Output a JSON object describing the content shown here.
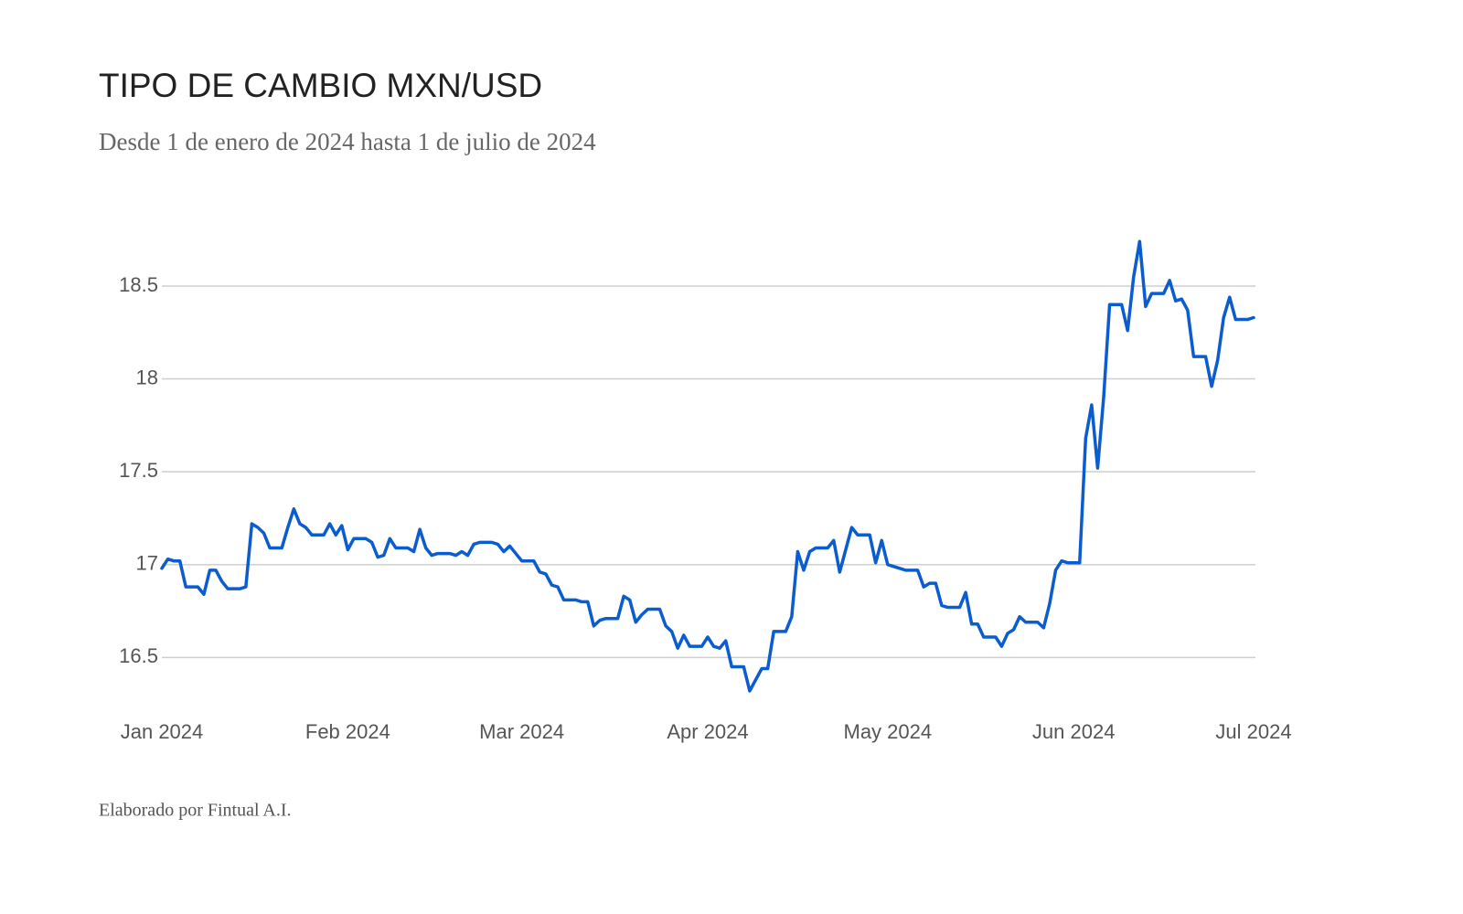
{
  "chart_data": {
    "type": "line",
    "title": "TIPO DE CAMBIO MXN/USD",
    "subtitle": "Desde 1 de enero de 2024 hasta 1 de julio de 2024",
    "footer": "Elaborado por Fintual A.I.",
    "categories": [
      "Jan 2024",
      null,
      null,
      null,
      null,
      null,
      null,
      null,
      null,
      null,
      null,
      null,
      null,
      null,
      null,
      null,
      null,
      null,
      null,
      null,
      null,
      null,
      null,
      null,
      null,
      null,
      null,
      null,
      null,
      null,
      null,
      "Feb 2024",
      null,
      null,
      null,
      null,
      null,
      null,
      null,
      null,
      null,
      null,
      null,
      null,
      null,
      null,
      null,
      null,
      null,
      null,
      null,
      null,
      null,
      null,
      null,
      null,
      null,
      null,
      null,
      null,
      "Mar 2024",
      null,
      null,
      null,
      null,
      null,
      null,
      null,
      null,
      null,
      null,
      null,
      null,
      null,
      null,
      null,
      null,
      null,
      null,
      null,
      null,
      null,
      null,
      null,
      null,
      null,
      null,
      null,
      null,
      null,
      null,
      "Apr 2024",
      null,
      null,
      null,
      null,
      null,
      null,
      null,
      null,
      null,
      null,
      null,
      null,
      null,
      null,
      null,
      null,
      null,
      null,
      null,
      null,
      null,
      null,
      null,
      null,
      null,
      null,
      null,
      null,
      null,
      "May 2024",
      null,
      null,
      null,
      null,
      null,
      null,
      null,
      null,
      null,
      null,
      null,
      null,
      null,
      null,
      null,
      null,
      null,
      null,
      null,
      null,
      null,
      null,
      null,
      null,
      null,
      null,
      null,
      null,
      null,
      null,
      "Jun 2024",
      null,
      null,
      null,
      null,
      null,
      null,
      null,
      null,
      null,
      null,
      null,
      null,
      null,
      null,
      null,
      null,
      null,
      null,
      null,
      null,
      null,
      null,
      null,
      null,
      null,
      null,
      null,
      null,
      null,
      "Jul 2024"
    ],
    "values": [
      16.98,
      17.03,
      17.02,
      17.02,
      16.88,
      16.88,
      16.88,
      16.84,
      16.97,
      16.97,
      16.91,
      16.87,
      16.87,
      16.87,
      16.88,
      17.22,
      17.2,
      17.17,
      17.09,
      17.09,
      17.09,
      17.2,
      17.3,
      17.22,
      17.2,
      17.16,
      17.16,
      17.16,
      17.22,
      17.16,
      17.21,
      17.08,
      17.14,
      17.14,
      17.14,
      17.12,
      17.04,
      17.05,
      17.14,
      17.09,
      17.09,
      17.09,
      17.07,
      17.19,
      17.09,
      17.05,
      17.06,
      17.06,
      17.06,
      17.05,
      17.07,
      17.05,
      17.11,
      17.12,
      17.12,
      17.12,
      17.11,
      17.07,
      17.1,
      17.06,
      17.02,
      17.02,
      17.02,
      16.96,
      16.95,
      16.89,
      16.88,
      16.81,
      16.81,
      16.81,
      16.8,
      16.8,
      16.67,
      16.7,
      16.71,
      16.71,
      16.71,
      16.83,
      16.81,
      16.69,
      16.73,
      16.76,
      16.76,
      16.76,
      16.67,
      16.64,
      16.55,
      16.62,
      16.56,
      16.56,
      16.56,
      16.61,
      16.56,
      16.55,
      16.59,
      16.45,
      16.45,
      16.45,
      16.32,
      16.38,
      16.44,
      16.44,
      16.64,
      16.64,
      16.64,
      16.72,
      17.07,
      16.97,
      17.07,
      17.09,
      17.09,
      17.09,
      17.13,
      16.96,
      17.08,
      17.2,
      17.16,
      17.16,
      17.16,
      17.01,
      17.13,
      17.0,
      16.99,
      16.98,
      16.97,
      16.97,
      16.97,
      16.88,
      16.9,
      16.9,
      16.78,
      16.77,
      16.77,
      16.77,
      16.85,
      16.68,
      16.68,
      16.61,
      16.61,
      16.61,
      16.56,
      16.63,
      16.65,
      16.72,
      16.69,
      16.69,
      16.69,
      16.66,
      16.79,
      16.97,
      17.02,
      17.01,
      17.01,
      17.01,
      17.68,
      17.86,
      17.52,
      17.9,
      18.4,
      18.4,
      18.4,
      18.26,
      18.55,
      18.74,
      18.39,
      18.46,
      18.46,
      18.46,
      18.53,
      18.42,
      18.43,
      18.37,
      18.12,
      18.12,
      18.12,
      17.96,
      18.1,
      18.33,
      18.44,
      18.32,
      18.32,
      18.32,
      18.33
    ],
    "color": "#0b5ccf",
    "ylim": [
      16.3,
      18.8
    ],
    "yticks": [
      16.5,
      17,
      17.5,
      18,
      18.5
    ],
    "grid": true
  }
}
